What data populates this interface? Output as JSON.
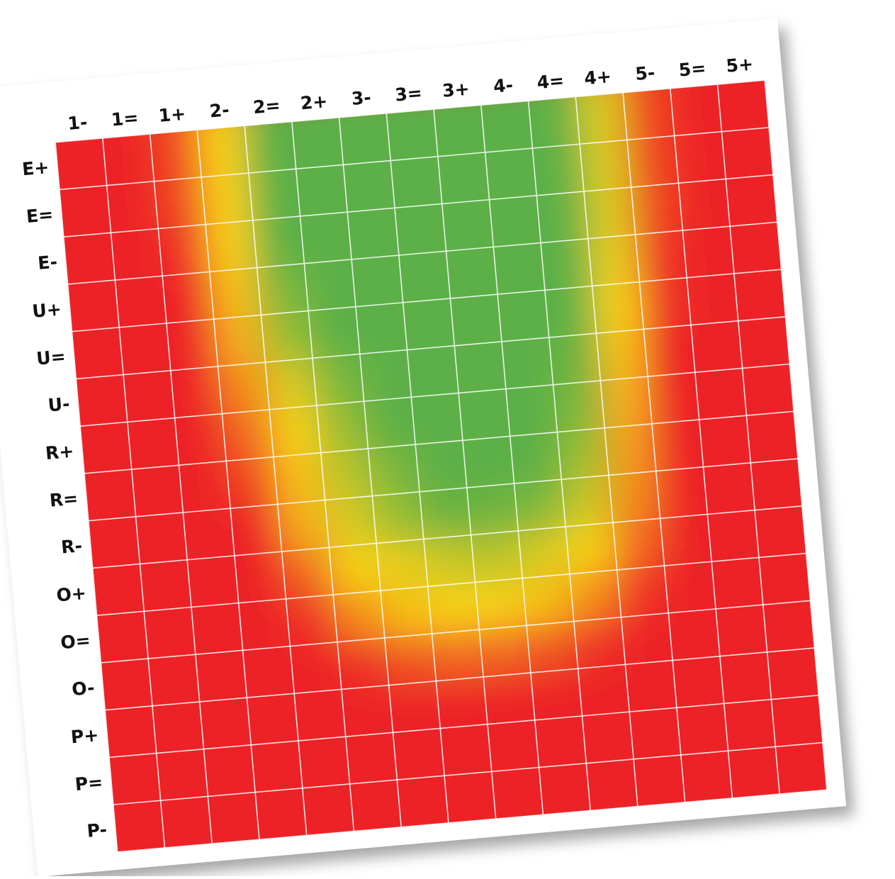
{
  "chart_data": {
    "type": "heatmap",
    "title": "",
    "xlabel": "",
    "ylabel": "",
    "x_categories": [
      "1-",
      "1=",
      "1+",
      "2-",
      "2=",
      "2+",
      "3-",
      "3=",
      "3+",
      "4-",
      "4=",
      "4+",
      "5-",
      "5=",
      "5+"
    ],
    "y_categories": [
      "E+",
      "E=",
      "E-",
      "U+",
      "U=",
      "U-",
      "R+",
      "R=",
      "R-",
      "O+",
      "O=",
      "O-",
      "P+",
      "P=",
      "P-"
    ],
    "color_scale": {
      "low": "#ED2127",
      "mid": "#F7D117",
      "high": "#5BB046"
    },
    "grid": true,
    "grid_color": "#FFFFFF",
    "values": [
      [
        0,
        0,
        0.1,
        0.5,
        1,
        1,
        1,
        1,
        1,
        1,
        1,
        0.6,
        0.1,
        0,
        0
      ],
      [
        0,
        0,
        0.1,
        0.5,
        1,
        1,
        1,
        1,
        1,
        1,
        1,
        0.6,
        0.1,
        0,
        0
      ],
      [
        0,
        0,
        0.05,
        0.5,
        1,
        1,
        1,
        1,
        1,
        1,
        1,
        0.6,
        0.1,
        0,
        0
      ],
      [
        0,
        0,
        0,
        0.45,
        0.9,
        1,
        1,
        1,
        1,
        1,
        1,
        0.55,
        0.05,
        0,
        0
      ],
      [
        0,
        0,
        0,
        0.4,
        0.8,
        1,
        1,
        1,
        1,
        1,
        1,
        0.5,
        0.05,
        0,
        0
      ],
      [
        0,
        0,
        0,
        0.3,
        0.6,
        0.9,
        1,
        1,
        1,
        1,
        0.95,
        0.45,
        0,
        0,
        0
      ],
      [
        0,
        0,
        0,
        0.2,
        0.5,
        0.8,
        1,
        1,
        1,
        1,
        0.9,
        0.4,
        0,
        0,
        0
      ],
      [
        0,
        0,
        0,
        0.1,
        0.45,
        0.7,
        0.9,
        1,
        1,
        1,
        0.8,
        0.35,
        0,
        0,
        0
      ],
      [
        0,
        0,
        0,
        0,
        0.4,
        0.6,
        0.8,
        0.95,
        0.95,
        0.9,
        0.65,
        0.3,
        0,
        0,
        0
      ],
      [
        0,
        0,
        0,
        0,
        0.2,
        0.5,
        0.55,
        0.65,
        0.7,
        0.6,
        0.5,
        0.2,
        0,
        0,
        0
      ],
      [
        0,
        0,
        0,
        0,
        0.05,
        0.3,
        0.45,
        0.5,
        0.5,
        0.45,
        0.3,
        0.05,
        0,
        0,
        0
      ],
      [
        0,
        0,
        0,
        0,
        0,
        0.05,
        0.15,
        0.2,
        0.2,
        0.15,
        0.05,
        0,
        0,
        0,
        0
      ],
      [
        0,
        0,
        0,
        0,
        0,
        0,
        0,
        0,
        0,
        0,
        0,
        0,
        0,
        0,
        0
      ],
      [
        0,
        0,
        0,
        0,
        0,
        0,
        0,
        0,
        0,
        0,
        0,
        0,
        0,
        0,
        0
      ],
      [
        0,
        0,
        0,
        0,
        0,
        0,
        0,
        0,
        0,
        0,
        0,
        0,
        0,
        0,
        0
      ]
    ]
  }
}
